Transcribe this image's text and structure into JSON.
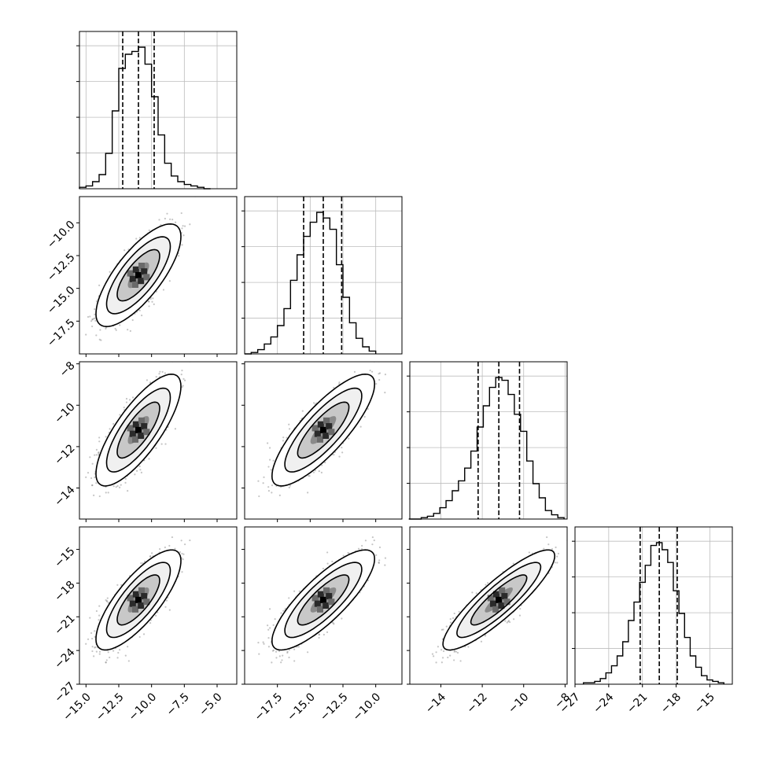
{
  "chart_data": {
    "type": "corner",
    "title": "",
    "dimensions": 4,
    "variables": [
      {
        "label": "",
        "range": [
          -15.5,
          -3.5
        ],
        "ticks": [
          "−15.0",
          "−12.5",
          "−10.0",
          "−7.5",
          "−5.0"
        ],
        "tick_values": [
          -15.0,
          -12.5,
          -10.0,
          -7.5,
          -5.0
        ],
        "quantiles": {
          "q16": -12.2,
          "q50": -11.0,
          "q84": -9.8
        },
        "mean": -11.0,
        "sd": 1.2
      },
      {
        "label": "",
        "range": [
          -20.0,
          -8.0
        ],
        "ticks": [
          "−17.5",
          "−15.0",
          "−12.5",
          "−10.0"
        ],
        "tick_values": [
          -17.5,
          -15.0,
          -12.5,
          -10.0
        ],
        "quantiles": {
          "q16": -15.5,
          "q50": -14.0,
          "q84": -12.6
        },
        "mean": -14.0,
        "sd": 1.45
      },
      {
        "label": "",
        "range": [
          -15.5,
          -7.9
        ],
        "ticks": [
          "−14",
          "−12",
          "−10",
          "−8"
        ],
        "tick_values": [
          -14,
          -12,
          -10,
          -8
        ],
        "quantiles": {
          "q16": -12.2,
          "q50": -11.2,
          "q84": -10.2
        },
        "mean": -11.2,
        "sd": 1.0
      },
      {
        "label": "",
        "range": [
          -27.0,
          -13.0
        ],
        "ticks": [
          "−27",
          "−24",
          "−21",
          "−18",
          "−15"
        ],
        "tick_values": [
          -27,
          -24,
          -21,
          -18,
          -15
        ],
        "quantiles": {
          "q16": -21.2,
          "q50": -19.5,
          "q84": -17.9
        },
        "mean": -19.5,
        "sd": 1.65
      }
    ],
    "correlations": [
      [
        1.0,
        0.75,
        0.78,
        0.78
      ],
      [
        0.75,
        1.0,
        0.82,
        0.82
      ],
      [
        0.78,
        0.82,
        1.0,
        0.88
      ],
      [
        0.78,
        0.82,
        0.88,
        1.0
      ]
    ],
    "histograms": [
      {
        "x": [
          -15.25,
          -14.75,
          -14.25,
          -13.75,
          -13.25,
          -12.75,
          -12.25,
          -11.75,
          -11.25,
          -10.75,
          -10.25,
          -9.75,
          -9.25,
          -8.75,
          -8.25,
          -7.75,
          -7.25,
          -6.75,
          -6.25,
          -5.75
        ],
        "y": [
          1,
          2,
          5,
          10,
          25,
          55,
          85,
          95,
          97,
          100,
          88,
          65,
          38,
          18,
          9,
          5,
          3,
          2,
          1,
          0
        ]
      },
      {
        "x": [
          -19.75,
          -19.25,
          -18.75,
          -18.25,
          -17.75,
          -17.25,
          -16.75,
          -16.25,
          -15.75,
          -15.25,
          -14.75,
          -14.25,
          -13.75,
          -13.25,
          -12.75,
          -12.25,
          -11.75,
          -11.25,
          -10.75,
          -10.25
        ],
        "y": [
          0,
          1,
          3,
          7,
          12,
          20,
          32,
          52,
          70,
          83,
          93,
          100,
          96,
          88,
          63,
          40,
          22,
          11,
          5,
          2
        ]
      },
      {
        "x": [
          -15.4,
          -15.1,
          -14.8,
          -14.5,
          -14.2,
          -13.9,
          -13.6,
          -13.3,
          -13.0,
          -12.7,
          -12.4,
          -12.1,
          -11.8,
          -11.5,
          -11.2,
          -10.9,
          -10.6,
          -10.3,
          -10.0,
          -9.7,
          -9.4,
          -9.1,
          -8.8,
          -8.5,
          -8.2
        ],
        "y": [
          0,
          0,
          1,
          2,
          4,
          8,
          13,
          20,
          27,
          36,
          48,
          65,
          80,
          93,
          100,
          98,
          88,
          74,
          62,
          41,
          25,
          15,
          6,
          3,
          1
        ]
      },
      {
        "x": [
          -26.0,
          -25.5,
          -25.0,
          -24.5,
          -24.0,
          -23.5,
          -23.0,
          -22.5,
          -22.0,
          -21.5,
          -21.0,
          -20.5,
          -20.0,
          -19.5,
          -19.0,
          -18.5,
          -18.0,
          -17.5,
          -17.0,
          -16.5,
          -16.0,
          -15.5,
          -15.0,
          -14.5,
          -14.0
        ],
        "y": [
          1,
          1,
          2,
          4,
          8,
          13,
          20,
          30,
          45,
          58,
          72,
          84,
          98,
          100,
          95,
          86,
          66,
          50,
          33,
          20,
          12,
          6,
          3,
          2,
          1
        ]
      }
    ],
    "scatter_points_per_panel": 5000,
    "contour_levels_sigma": [
      0.5,
      1.0,
      1.5,
      2.0
    ],
    "grid": true,
    "legend": "none"
  }
}
